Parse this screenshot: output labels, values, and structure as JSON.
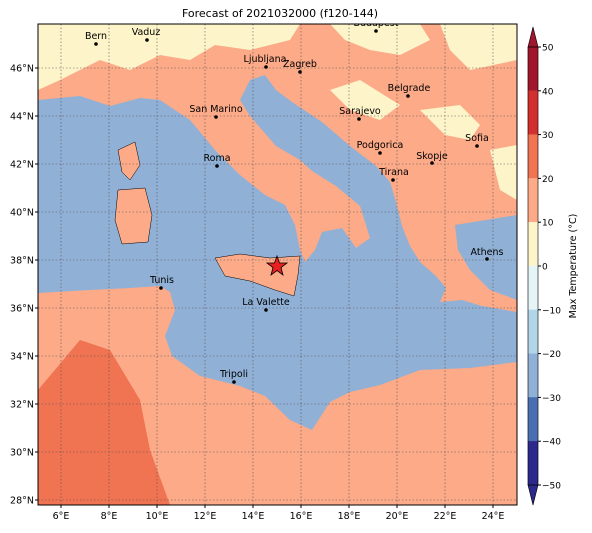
{
  "title": "Forecast of 2021032000 (f120-144)",
  "map": {
    "xticks": [
      {
        "value": 6,
        "label": "6°E"
      },
      {
        "value": 8,
        "label": "8°E"
      },
      {
        "value": 10,
        "label": "10°E"
      },
      {
        "value": 12,
        "label": "12°E"
      },
      {
        "value": 14,
        "label": "14°E"
      },
      {
        "value": 16,
        "label": "16°E"
      },
      {
        "value": 18,
        "label": "18°E"
      },
      {
        "value": 20,
        "label": "20°E"
      },
      {
        "value": 22,
        "label": "22°E"
      },
      {
        "value": 24,
        "label": "24°E"
      }
    ],
    "yticks": [
      {
        "value": 28,
        "label": "28°N"
      },
      {
        "value": 30,
        "label": "30°N"
      },
      {
        "value": 32,
        "label": "32°N"
      },
      {
        "value": 34,
        "label": "34°N"
      },
      {
        "value": 36,
        "label": "36°N"
      },
      {
        "value": 38,
        "label": "38°N"
      },
      {
        "value": 40,
        "label": "40°N"
      },
      {
        "value": 42,
        "label": "42°N"
      },
      {
        "value": 44,
        "label": "44°N"
      },
      {
        "value": 46,
        "label": "46°N"
      }
    ],
    "cities": [
      "Bern",
      "Vaduz",
      "Budapest",
      "Ljubljana",
      "Zagreb",
      "Belgrade",
      "Sarajevo",
      "San Marino",
      "Sofia",
      "Podgorica",
      "Skopje",
      "Roma",
      "Tirana",
      "Athens",
      "Tunis",
      "La Valette",
      "Tripoli"
    ]
  },
  "colorbar": {
    "label": "Max Temperature (°C)",
    "ticks": [
      50,
      40,
      30,
      20,
      10,
      0,
      {
        "value": -10,
        "label": "−10"
      },
      {
        "value": -20,
        "label": "−20"
      },
      {
        "value": -30,
        "label": "−30"
      },
      {
        "value": -40,
        "label": "−40"
      },
      {
        "value": -50,
        "label": "−50"
      }
    ],
    "colors": [
      "#a0162c",
      "#d2302f",
      "#f07352",
      "#fcaa88",
      "#fdf5c9",
      "#e4f4f7",
      "#b3d5e8",
      "#90b0d6",
      "#4a6fb0",
      "#2b2a8c"
    ]
  }
}
